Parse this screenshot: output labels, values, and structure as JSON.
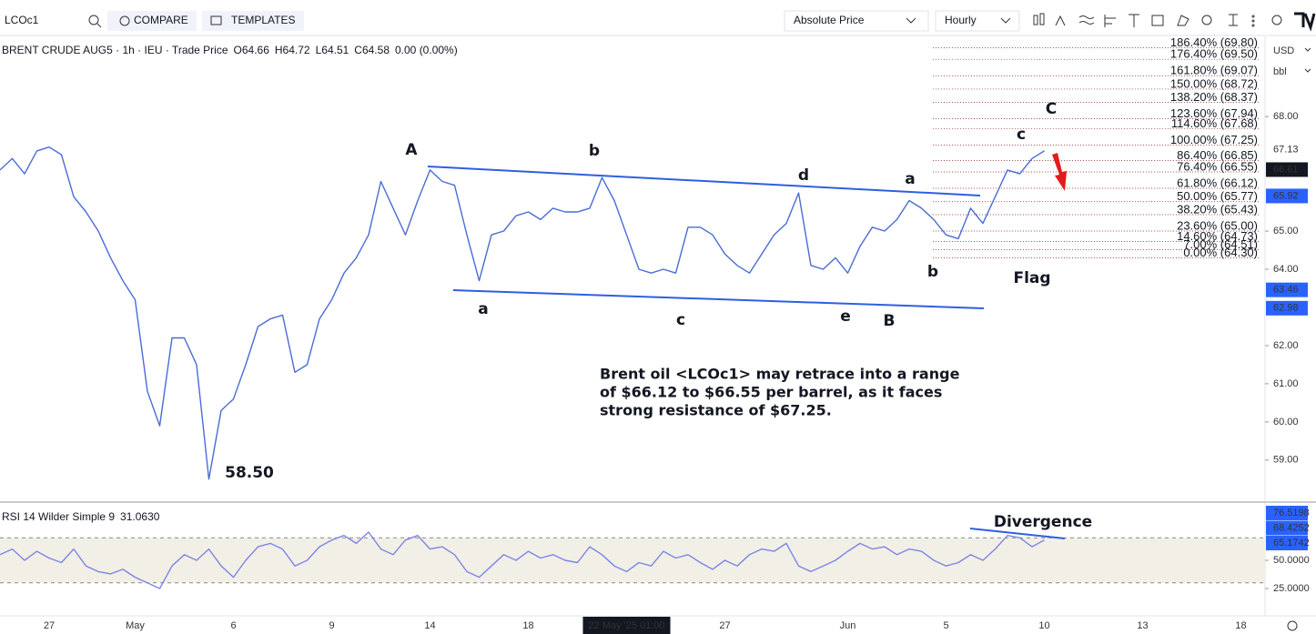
{
  "toolbar": {
    "symbol": "LCOc1",
    "compare": "COMPARE",
    "templates": "TEMPLATES",
    "price_mode": "Absolute Price",
    "interval": "Hourly"
  },
  "currency": "USD",
  "unit": "bbl",
  "chart_data": [
    {
      "type": "line",
      "legend": [
        "BRENT CRUDE AUG5 · 1h · IEU · Trade Price",
        "O64.66",
        "H64.72",
        "L64.51",
        "C64.58",
        "0.00 (0.00%)"
      ],
      "categories": [
        null,
        null,
        null,
        null,
        "27",
        null,
        null,
        null,
        null,
        null,
        null,
        "May",
        null,
        null,
        null,
        null,
        null,
        null,
        null,
        "6",
        null,
        null,
        null,
        null,
        null,
        null,
        null,
        "9",
        null,
        null,
        null,
        null,
        null,
        null,
        null,
        "14",
        null,
        null,
        null,
        null,
        null,
        null,
        null,
        "18",
        null,
        null,
        null,
        null,
        null,
        null,
        null,
        "22 May '25  01:00",
        null,
        null,
        null,
        null,
        null,
        null,
        null,
        "27",
        null,
        null,
        null,
        null,
        null,
        null,
        null,
        null,
        null,
        "Jun",
        null,
        null,
        null,
        null,
        null,
        null,
        null,
        "5",
        null,
        null,
        null,
        null,
        null,
        null,
        null,
        "10",
        null,
        null,
        null,
        null,
        null,
        null,
        null,
        "13",
        null,
        null,
        null,
        null,
        null,
        null,
        null,
        "18"
      ],
      "series": [
        {
          "color": "#4a6cd4",
          "values": [
            66.6,
            66.9,
            66.5,
            67.1,
            67.2,
            67.0,
            65.9,
            65.5,
            65.0,
            64.3,
            63.7,
            63.2,
            60.8,
            59.9,
            62.2,
            62.2,
            61.5,
            58.5,
            60.3,
            60.6,
            61.5,
            62.5,
            62.7,
            62.8,
            61.3,
            61.5,
            62.7,
            63.2,
            63.9,
            64.3,
            64.9,
            66.3,
            65.6,
            64.9,
            65.8,
            66.6,
            66.3,
            66.2,
            64.9,
            63.7,
            64.9,
            65.0,
            65.4,
            65.5,
            65.3,
            65.6,
            65.5,
            65.5,
            65.6,
            66.4,
            65.8,
            64.9,
            64.0,
            63.9,
            64.0,
            63.9,
            65.1,
            65.1,
            64.9,
            64.4,
            64.1,
            63.9,
            64.4,
            64.9,
            65.2,
            66.0,
            64.1,
            64.0,
            64.3,
            63.9,
            64.6,
            65.1,
            65.0,
            65.3,
            65.8,
            65.6,
            65.3,
            64.9,
            64.8,
            65.6,
            65.2,
            65.9,
            66.6,
            66.5,
            66.9,
            67.1,
            null,
            null,
            null,
            null,
            null,
            null,
            null,
            null,
            null,
            null,
            null,
            null,
            null,
            null,
            null,
            null
          ]
        }
      ],
      "ylim": [
        57.9,
        70.1
      ],
      "yticks": [
        {
          "value": 68,
          "label": "68.00"
        },
        {
          "value": 65,
          "label": "65.00"
        },
        {
          "value": 64,
          "label": "64.00"
        },
        {
          "value": 62,
          "label": "62.00"
        },
        {
          "value": 61,
          "label": "61.00"
        },
        {
          "value": 60,
          "label": "60.00"
        },
        {
          "value": 59,
          "label": "59.00"
        }
      ],
      "grid": false,
      "fib_color": "#8b1e1e",
      "fib_levels": [
        {
          "label": "186.40% (69.80)",
          "value": 69.8
        },
        {
          "label": "176.40% (69.50)",
          "value": 69.5
        },
        {
          "label": "161.80% (69.07)",
          "value": 69.07
        },
        {
          "label": "150.00% (68.72)",
          "value": 68.72
        },
        {
          "label": "138.20% (68.37)",
          "value": 68.37
        },
        {
          "label": "123.60% (67.94)",
          "value": 67.94
        },
        {
          "label": "114.60% (67.68)",
          "value": 67.68
        },
        {
          "label": "100.00% (67.25)",
          "value": 67.25
        },
        {
          "label": "86.40% (66.85)",
          "value": 66.85
        },
        {
          "label": "76.40% (66.55)",
          "value": 66.55
        },
        {
          "label": "61.80% (66.12)",
          "value": 66.12
        },
        {
          "label": "50.00% (65.77)",
          "value": 65.77
        },
        {
          "label": "38.20% (65.43)",
          "value": 65.43
        },
        {
          "label": "23.60% (65.00)",
          "value": 65.0
        },
        {
          "label": "14.60% (64.73)",
          "value": 64.73
        },
        {
          "label": "7.00% (64.51)",
          "value": 64.51
        },
        {
          "label": "0.00% (64.30)",
          "value": 64.3
        }
      ],
      "price_labels": [
        67.13
      ],
      "last_price": 66.61,
      "level_badges": [
        65.92,
        63.46,
        62.98
      ],
      "annotations": [
        "A",
        "b",
        "d",
        "a",
        "c",
        "C",
        "a",
        "c",
        "e",
        "B",
        "b",
        "Flag",
        "58.50"
      ],
      "note": [
        "Brent oil <LCOc1> may retrace into a range",
        "of $66.12 to $66.55 per barrel, as it faces",
        "strong resistance of $67.25."
      ]
    },
    {
      "type": "line",
      "legend": [
        "RSI 14 Wilder Simple 9",
        "31.0630"
      ],
      "series": [
        {
          "color": "#7b86e6",
          "values": [
            55,
            60,
            50,
            58,
            52,
            48,
            60,
            45,
            40,
            38,
            42,
            35,
            30,
            25,
            45,
            55,
            50,
            60,
            45,
            35,
            50,
            62,
            65,
            60,
            45,
            50,
            62,
            68,
            72,
            65,
            75,
            60,
            55,
            68,
            72,
            60,
            62,
            55,
            40,
            35,
            45,
            55,
            50,
            58,
            52,
            55,
            50,
            48,
            62,
            55,
            45,
            40,
            48,
            45,
            58,
            52,
            55,
            48,
            42,
            50,
            45,
            55,
            60,
            58,
            65,
            45,
            40,
            45,
            50,
            58,
            65,
            60,
            62,
            55,
            60,
            58,
            50,
            45,
            48,
            55,
            50,
            60,
            72,
            70,
            62,
            68,
            null,
            null,
            null,
            null,
            null,
            null,
            null,
            null,
            null,
            null,
            null,
            null,
            null,
            null,
            null,
            null
          ]
        }
      ],
      "ylim": [
        0,
        100
      ],
      "yticks": [
        {
          "value": 50,
          "label": "50.0000"
        },
        {
          "value": 25,
          "label": "25.0000"
        }
      ],
      "bands": [
        30,
        70
      ],
      "band_fill": "#f2efe6",
      "badges": [
        76.5198,
        68.4252,
        65.1742
      ],
      "annotations": [
        "Divergence"
      ]
    }
  ]
}
